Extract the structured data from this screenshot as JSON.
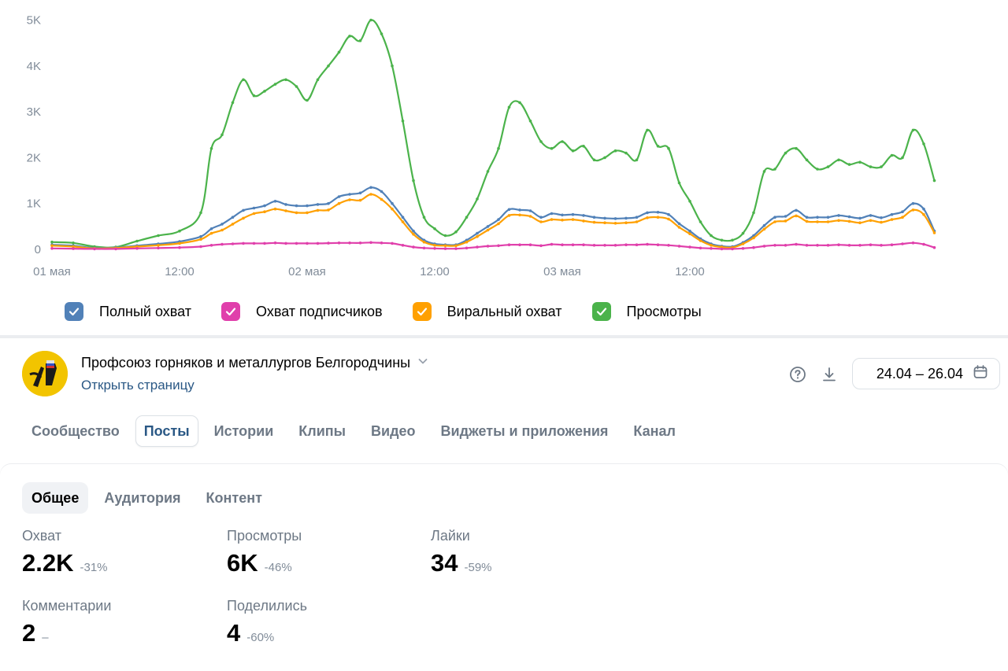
{
  "colors": {
    "full_reach": "#5181b8",
    "subscribers_reach": "#e03fab",
    "viral_reach": "#ffa000",
    "views": "#4bb34b",
    "link": "#2a5885",
    "muted": "#6d7885"
  },
  "chart_data": {
    "type": "line",
    "y_ticks": [
      "0",
      "1K",
      "2K",
      "3K",
      "4K",
      "5K"
    ],
    "x_ticks": [
      "01 мая",
      "12:00",
      "02 мая",
      "12:00",
      "03 мая",
      "12:00"
    ],
    "ylim": [
      0,
      5000
    ],
    "x_range_hours": [
      0,
      72
    ],
    "grid": false,
    "legend_position": "bottom",
    "series": [
      {
        "name": "Просмотры",
        "color": "#4bb34b",
        "points": [
          [
            0,
            160
          ],
          [
            2,
            140
          ],
          [
            4,
            60
          ],
          [
            6,
            50
          ],
          [
            8,
            180
          ],
          [
            10,
            300
          ],
          [
            12,
            400
          ],
          [
            14,
            800
          ],
          [
            15,
            2200
          ],
          [
            16,
            2500
          ],
          [
            17,
            3200
          ],
          [
            18,
            3700
          ],
          [
            19,
            3350
          ],
          [
            20,
            3450
          ],
          [
            21,
            3600
          ],
          [
            22,
            3700
          ],
          [
            23,
            3550
          ],
          [
            24,
            3250
          ],
          [
            25,
            3700
          ],
          [
            26,
            4000
          ],
          [
            27,
            4300
          ],
          [
            28,
            4650
          ],
          [
            29,
            4550
          ],
          [
            30,
            5000
          ],
          [
            31,
            4700
          ],
          [
            32,
            4000
          ],
          [
            33,
            2800
          ],
          [
            34,
            1500
          ],
          [
            35,
            700
          ],
          [
            36,
            450
          ],
          [
            37,
            300
          ],
          [
            38,
            380
          ],
          [
            39,
            700
          ],
          [
            40,
            1100
          ],
          [
            41,
            1700
          ],
          [
            42,
            2200
          ],
          [
            43,
            3100
          ],
          [
            44,
            3200
          ],
          [
            45,
            2800
          ],
          [
            46,
            2350
          ],
          [
            47,
            2200
          ],
          [
            48,
            2350
          ],
          [
            49,
            2150
          ],
          [
            50,
            2250
          ],
          [
            51,
            1950
          ],
          [
            52,
            2000
          ],
          [
            53,
            2150
          ],
          [
            54,
            2100
          ],
          [
            55,
            1950
          ],
          [
            56,
            2600
          ],
          [
            57,
            2250
          ],
          [
            58,
            2200
          ],
          [
            59,
            1450
          ],
          [
            60,
            1050
          ],
          [
            61,
            600
          ],
          [
            62,
            300
          ],
          [
            63,
            200
          ],
          [
            64,
            200
          ],
          [
            65,
            350
          ],
          [
            66,
            800
          ],
          [
            67,
            1700
          ],
          [
            68,
            1750
          ],
          [
            69,
            2100
          ],
          [
            70,
            2200
          ],
          [
            71,
            1950
          ],
          [
            72,
            1750
          ],
          [
            73,
            1800
          ],
          [
            74,
            1950
          ],
          [
            75,
            1850
          ],
          [
            76,
            1900
          ],
          [
            77,
            1800
          ],
          [
            78,
            1800
          ],
          [
            79,
            2050
          ],
          [
            80,
            2000
          ],
          [
            81,
            2600
          ],
          [
            82,
            2300
          ],
          [
            83,
            1500
          ]
        ]
      },
      {
        "name": "Полный охват",
        "color": "#5181b8",
        "points": [
          [
            0,
            100
          ],
          [
            2,
            80
          ],
          [
            4,
            30
          ],
          [
            6,
            40
          ],
          [
            8,
            80
          ],
          [
            10,
            120
          ],
          [
            12,
            170
          ],
          [
            14,
            280
          ],
          [
            15,
            450
          ],
          [
            16,
            550
          ],
          [
            17,
            700
          ],
          [
            18,
            850
          ],
          [
            19,
            900
          ],
          [
            20,
            950
          ],
          [
            21,
            1050
          ],
          [
            22,
            980
          ],
          [
            23,
            950
          ],
          [
            24,
            950
          ],
          [
            25,
            980
          ],
          [
            26,
            1000
          ],
          [
            27,
            1150
          ],
          [
            28,
            1200
          ],
          [
            29,
            1230
          ],
          [
            30,
            1350
          ],
          [
            31,
            1260
          ],
          [
            32,
            1000
          ],
          [
            33,
            700
          ],
          [
            34,
            400
          ],
          [
            35,
            200
          ],
          [
            36,
            120
          ],
          [
            37,
            100
          ],
          [
            38,
            100
          ],
          [
            39,
            200
          ],
          [
            40,
            350
          ],
          [
            41,
            500
          ],
          [
            42,
            650
          ],
          [
            43,
            870
          ],
          [
            44,
            860
          ],
          [
            45,
            840
          ],
          [
            46,
            700
          ],
          [
            47,
            780
          ],
          [
            48,
            750
          ],
          [
            49,
            760
          ],
          [
            50,
            740
          ],
          [
            51,
            700
          ],
          [
            52,
            680
          ],
          [
            53,
            670
          ],
          [
            54,
            680
          ],
          [
            55,
            700
          ],
          [
            56,
            800
          ],
          [
            57,
            810
          ],
          [
            58,
            760
          ],
          [
            59,
            560
          ],
          [
            60,
            400
          ],
          [
            61,
            230
          ],
          [
            62,
            120
          ],
          [
            63,
            70
          ],
          [
            64,
            60
          ],
          [
            65,
            150
          ],
          [
            66,
            300
          ],
          [
            67,
            520
          ],
          [
            68,
            700
          ],
          [
            69,
            720
          ],
          [
            70,
            850
          ],
          [
            71,
            700
          ],
          [
            72,
            700
          ],
          [
            73,
            700
          ],
          [
            74,
            740
          ],
          [
            75,
            710
          ],
          [
            76,
            680
          ],
          [
            77,
            740
          ],
          [
            78,
            690
          ],
          [
            79,
            760
          ],
          [
            80,
            820
          ],
          [
            81,
            1000
          ],
          [
            82,
            880
          ],
          [
            83,
            400
          ]
        ]
      },
      {
        "name": "Виральный охват",
        "color": "#ffa000",
        "points": [
          [
            0,
            80
          ],
          [
            2,
            60
          ],
          [
            4,
            20
          ],
          [
            6,
            30
          ],
          [
            8,
            60
          ],
          [
            10,
            90
          ],
          [
            12,
            130
          ],
          [
            14,
            220
          ],
          [
            15,
            350
          ],
          [
            16,
            420
          ],
          [
            17,
            550
          ],
          [
            18,
            680
          ],
          [
            19,
            780
          ],
          [
            20,
            820
          ],
          [
            21,
            880
          ],
          [
            22,
            840
          ],
          [
            23,
            800
          ],
          [
            24,
            800
          ],
          [
            25,
            850
          ],
          [
            26,
            860
          ],
          [
            27,
            1000
          ],
          [
            28,
            1080
          ],
          [
            29,
            1070
          ],
          [
            30,
            1200
          ],
          [
            31,
            1090
          ],
          [
            32,
            880
          ],
          [
            33,
            600
          ],
          [
            34,
            330
          ],
          [
            35,
            160
          ],
          [
            36,
            90
          ],
          [
            37,
            80
          ],
          [
            38,
            80
          ],
          [
            39,
            160
          ],
          [
            40,
            280
          ],
          [
            41,
            420
          ],
          [
            42,
            560
          ],
          [
            43,
            740
          ],
          [
            44,
            750
          ],
          [
            45,
            720
          ],
          [
            46,
            600
          ],
          [
            47,
            650
          ],
          [
            48,
            640
          ],
          [
            49,
            650
          ],
          [
            50,
            620
          ],
          [
            51,
            590
          ],
          [
            52,
            580
          ],
          [
            53,
            570
          ],
          [
            54,
            580
          ],
          [
            55,
            600
          ],
          [
            56,
            690
          ],
          [
            57,
            700
          ],
          [
            58,
            660
          ],
          [
            59,
            480
          ],
          [
            60,
            340
          ],
          [
            61,
            190
          ],
          [
            62,
            90
          ],
          [
            63,
            50
          ],
          [
            64,
            40
          ],
          [
            65,
            120
          ],
          [
            66,
            250
          ],
          [
            67,
            440
          ],
          [
            68,
            600
          ],
          [
            69,
            620
          ],
          [
            70,
            730
          ],
          [
            71,
            610
          ],
          [
            72,
            600
          ],
          [
            73,
            600
          ],
          [
            74,
            630
          ],
          [
            75,
            610
          ],
          [
            76,
            580
          ],
          [
            77,
            630
          ],
          [
            78,
            590
          ],
          [
            79,
            650
          ],
          [
            80,
            700
          ],
          [
            81,
            860
          ],
          [
            82,
            760
          ],
          [
            83,
            360
          ]
        ]
      },
      {
        "name": "Охват подписчиков",
        "color": "#e03fab",
        "points": [
          [
            0,
            20
          ],
          [
            2,
            15
          ],
          [
            4,
            10
          ],
          [
            6,
            10
          ],
          [
            8,
            20
          ],
          [
            10,
            30
          ],
          [
            12,
            40
          ],
          [
            14,
            60
          ],
          [
            15,
            90
          ],
          [
            16,
            110
          ],
          [
            17,
            120
          ],
          [
            18,
            130
          ],
          [
            19,
            130
          ],
          [
            20,
            130
          ],
          [
            21,
            140
          ],
          [
            22,
            130
          ],
          [
            23,
            130
          ],
          [
            24,
            130
          ],
          [
            25,
            130
          ],
          [
            26,
            135
          ],
          [
            27,
            140
          ],
          [
            28,
            140
          ],
          [
            29,
            140
          ],
          [
            30,
            150
          ],
          [
            31,
            140
          ],
          [
            32,
            130
          ],
          [
            33,
            90
          ],
          [
            34,
            50
          ],
          [
            35,
            30
          ],
          [
            36,
            20
          ],
          [
            37,
            15
          ],
          [
            38,
            15
          ],
          [
            39,
            30
          ],
          [
            40,
            50
          ],
          [
            41,
            70
          ],
          [
            42,
            80
          ],
          [
            43,
            100
          ],
          [
            44,
            100
          ],
          [
            45,
            100
          ],
          [
            46,
            80
          ],
          [
            47,
            110
          ],
          [
            48,
            100
          ],
          [
            49,
            100
          ],
          [
            50,
            100
          ],
          [
            51,
            90
          ],
          [
            52,
            90
          ],
          [
            53,
            90
          ],
          [
            54,
            100
          ],
          [
            55,
            100
          ],
          [
            56,
            110
          ],
          [
            57,
            100
          ],
          [
            58,
            90
          ],
          [
            59,
            70
          ],
          [
            60,
            50
          ],
          [
            61,
            30
          ],
          [
            62,
            20
          ],
          [
            63,
            10
          ],
          [
            64,
            10
          ],
          [
            65,
            20
          ],
          [
            66,
            40
          ],
          [
            67,
            70
          ],
          [
            68,
            90
          ],
          [
            69,
            90
          ],
          [
            70,
            110
          ],
          [
            71,
            90
          ],
          [
            72,
            90
          ],
          [
            73,
            90
          ],
          [
            74,
            100
          ],
          [
            75,
            90
          ],
          [
            76,
            90
          ],
          [
            77,
            100
          ],
          [
            78,
            90
          ],
          [
            79,
            100
          ],
          [
            80,
            120
          ],
          [
            81,
            140
          ],
          [
            82,
            110
          ],
          [
            83,
            40
          ]
        ]
      }
    ]
  },
  "legend": [
    {
      "label": "Полный охват",
      "color": "#5181b8"
    },
    {
      "label": "Охват подписчиков",
      "color": "#e03fab"
    },
    {
      "label": "Виральный охват",
      "color": "#ffa000"
    },
    {
      "label": "Просмотры",
      "color": "#4bb34b"
    }
  ],
  "header": {
    "page_name": "Профсоюз горняков и металлургов Белгородчины",
    "open_page": "Открыть страницу",
    "date_range": "24.04 – 26.04",
    "icons": [
      "help-icon",
      "download-icon",
      "calendar-icon",
      "chevron-down-icon"
    ]
  },
  "tabs": [
    "Сообщество",
    "Посты",
    "Истории",
    "Клипы",
    "Видео",
    "Виджеты и приложения",
    "Канал"
  ],
  "active_tab": "Посты",
  "subtabs": [
    "Общее",
    "Аудитория",
    "Контент"
  ],
  "active_subtab": "Общее",
  "metrics": {
    "reach": {
      "label": "Охват",
      "value": "2.2K",
      "change": "-31%"
    },
    "views": {
      "label": "Просмотры",
      "value": "6K",
      "change": "-46%"
    },
    "likes": {
      "label": "Лайки",
      "value": "34",
      "change": "-59%"
    },
    "comments": {
      "label": "Комментарии",
      "value": "2",
      "change": "–"
    },
    "shares": {
      "label": "Поделились",
      "value": "4",
      "change": "-60%"
    }
  }
}
